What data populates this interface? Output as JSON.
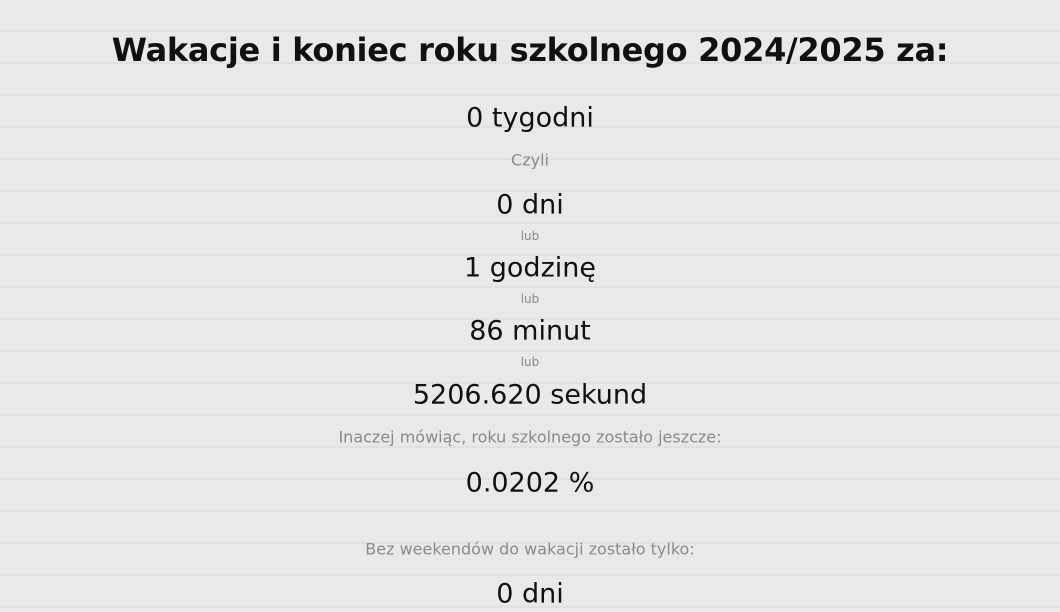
{
  "title": "Wakacje i koniec roku szkolnego 2024/2025 za:",
  "weeks": "0 tygodni",
  "czyli": "Czyli",
  "days": "0 dni",
  "or1": "lub",
  "hours": "1 godzinę",
  "or2": "lub",
  "minutes": "86 minut",
  "or3": "lub",
  "seconds": "5206.620 sekund",
  "remaining_label": "Inaczej mówiąc, roku szkolnego zostało jeszcze:",
  "remaining_percent": "0.0202 %",
  "workdays_label": "Bez weekendów do wakacji zostało tylko:",
  "workdays": "0 dni"
}
